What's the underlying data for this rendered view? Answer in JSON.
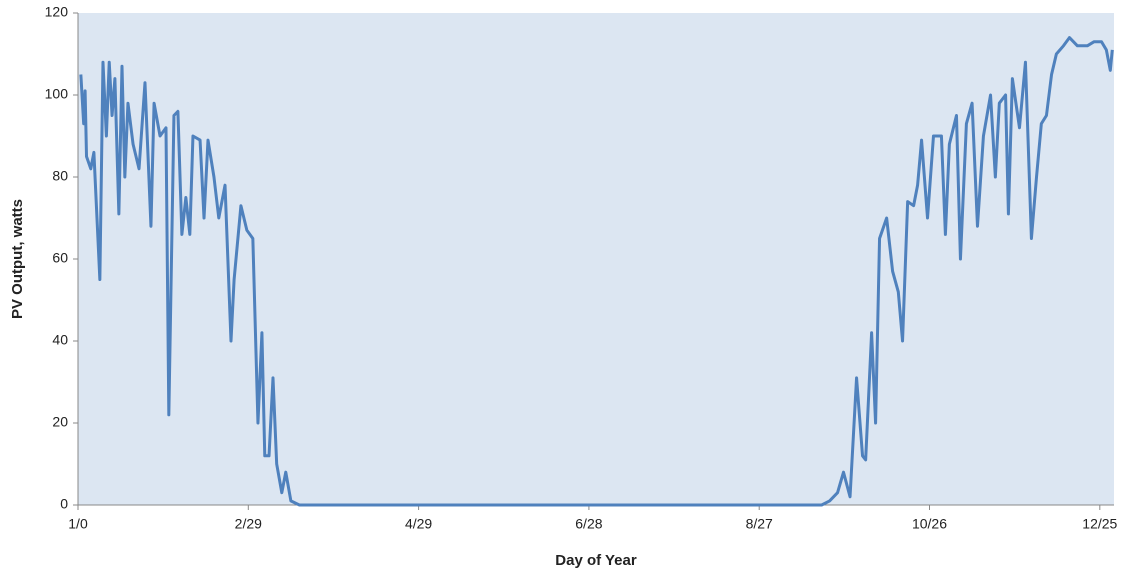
{
  "chart_data": {
    "type": "line",
    "x_label": "Day of Year",
    "y_label": "PV Output, watts",
    "x": [
      1,
      2,
      2.5,
      3,
      4.5,
      5.6,
      7.7,
      8.8,
      10,
      11,
      12,
      13,
      14.4,
      15.5,
      16.5,
      17.6,
      19.4,
      21.5,
      23.6,
      25.7,
      26.8,
      28.9,
      31,
      32,
      33.8,
      35.2,
      36.6,
      38,
      39.4,
      40.5,
      43,
      44.4,
      45.8,
      47.9,
      49.6,
      51.8,
      53.9,
      55,
      57.4,
      59.5,
      61.6,
      63.4,
      64.8,
      65.8,
      67.3,
      68.7,
      70,
      71.8,
      73.2,
      75,
      78,
      100,
      150,
      200,
      250,
      262,
      264.8,
      267.6,
      269.7,
      272,
      274.3,
      276.4,
      277.5,
      279.6,
      281,
      282.4,
      284.9,
      287,
      289,
      290.5,
      292.3,
      294.4,
      295.8,
      297.2,
      299.3,
      301.4,
      304.2,
      305.6,
      307,
      309.5,
      310.9,
      313,
      315,
      316.9,
      319,
      321.5,
      323.2,
      324.6,
      326.8,
      327.8,
      329.2,
      331.7,
      333.8,
      335.9,
      337.7,
      339.4,
      341.2,
      343,
      344.7,
      347.2,
      349.3,
      352.1,
      355.6,
      358,
      360.6,
      362.3,
      363.7,
      364.4
    ],
    "series": [
      {
        "name": "PV Output",
        "color": "#4f81bd",
        "values": [
          105,
          93,
          101,
          85,
          82,
          86,
          55,
          108,
          90,
          108,
          95,
          104,
          71,
          107,
          80,
          98,
          88,
          82,
          103,
          68,
          98,
          90,
          92,
          22,
          95,
          96,
          66,
          75,
          66,
          90,
          89,
          70,
          89,
          80,
          70,
          78,
          40,
          55,
          73,
          67,
          65,
          20,
          42,
          12,
          12,
          31,
          10,
          3,
          8,
          1,
          0,
          0,
          0,
          0,
          0,
          0,
          1,
          3,
          8,
          2,
          31,
          12,
          11,
          42,
          20,
          65,
          70,
          57,
          52,
          40,
          74,
          73,
          78,
          89,
          70,
          90,
          90,
          66,
          88,
          95,
          60,
          93,
          98,
          68,
          90,
          100,
          80,
          98,
          100,
          71,
          104,
          92,
          108,
          65,
          80,
          93,
          95,
          105,
          110,
          112,
          114,
          112,
          112,
          113,
          113,
          111,
          106,
          111
        ]
      }
    ],
    "xlim": [
      0,
      365
    ],
    "ylim": [
      0,
      120
    ],
    "xticks": [
      {
        "value": 0,
        "label": "1/0"
      },
      {
        "value": 60,
        "label": "2/29"
      },
      {
        "value": 120,
        "label": "4/29"
      },
      {
        "value": 180,
        "label": "6/28"
      },
      {
        "value": 240,
        "label": "8/27"
      },
      {
        "value": 300,
        "label": "10/26"
      },
      {
        "value": 360,
        "label": "12/25"
      }
    ],
    "yticks": [
      0,
      20,
      40,
      60,
      80,
      100,
      120
    ],
    "plot_background": "#dce6f2",
    "axis_color": "#888888"
  }
}
